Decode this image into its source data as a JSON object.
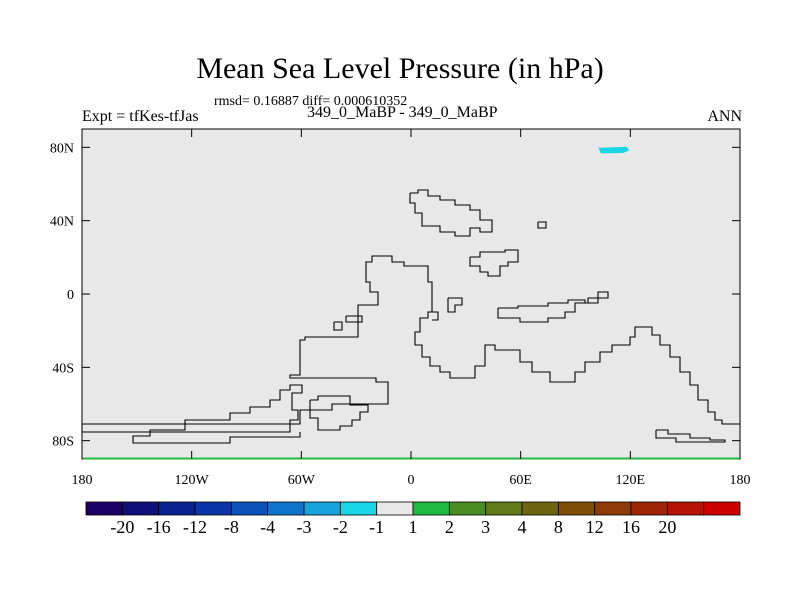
{
  "title": "Mean Sea Level Pressure (in hPa)",
  "stats": "rmsd= 0.16887 diff= 0.000610352",
  "experiment_label": "Expt = tfKes-tfJas",
  "experiment_names": "349_0_MaBP - 349_0_MaBP",
  "season": "ANN",
  "colors": {
    "background": "#ffffff",
    "map_fill": "#e8e8e8",
    "coastline": "#000000",
    "cyan_anomaly": "#19d6e6",
    "green_anomaly": "#20bb40"
  },
  "chart_data": {
    "type": "heatmap",
    "projection": "cylindrical-equidistant",
    "xlim": [
      -180,
      180
    ],
    "ylim": [
      -90,
      90
    ],
    "x_ticks": [
      -180,
      -120,
      -60,
      0,
      60,
      120,
      180
    ],
    "x_tick_labels": [
      "180",
      "120W",
      "60W",
      "0",
      "60E",
      "120E",
      "180"
    ],
    "y_ticks": [
      80,
      40,
      0,
      -40,
      -80
    ],
    "y_tick_labels": [
      "80N",
      "40N",
      "0",
      "40S",
      "80S"
    ],
    "field_value_range": "-1 to 1",
    "anomalies": [
      {
        "region": "Arctic near 100E-120E",
        "lat": [
          77,
          80
        ],
        "lon": [
          103,
          120
        ],
        "bin": "-2 to -1"
      },
      {
        "region": "Southern edge",
        "lat": [
          -90,
          -89
        ],
        "lon": [
          -180,
          180
        ],
        "bin": "1 to 2"
      }
    ],
    "colorbar": {
      "orientation": "horizontal",
      "colors": [
        "#1d0066",
        "#10107a",
        "#0a2190",
        "#0a35a8",
        "#0b53b8",
        "#0f75cc",
        "#16a4dc",
        "#19d6e6",
        "#e8e8e8",
        "#1dbb40",
        "#4a8d22",
        "#5f7a1b",
        "#6e6410",
        "#7e4d08",
        "#8c3a06",
        "#9e2606",
        "#b51405",
        "#cf0000"
      ],
      "labels": [
        "-20",
        "-16",
        "-12",
        "-8",
        "-4",
        "-3",
        "-2",
        "-1",
        "1",
        "2",
        "3",
        "4",
        "8",
        "12",
        "16",
        "20"
      ]
    }
  }
}
